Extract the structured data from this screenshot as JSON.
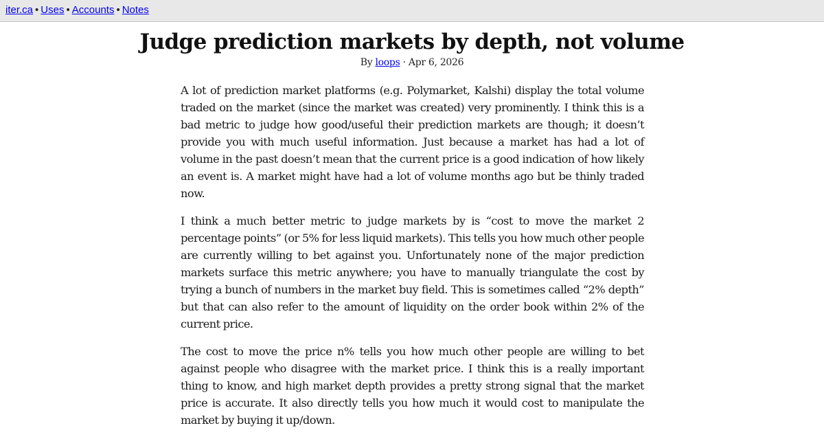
{
  "nav": {
    "links": [
      {
        "label": "iter.ca"
      },
      {
        "label": "Uses"
      },
      {
        "label": "Accounts"
      },
      {
        "label": "Notes"
      }
    ],
    "separator": "•"
  },
  "article": {
    "title": "Judge prediction markets by depth, not volume",
    "byline": {
      "prefix": "By ",
      "author": "loops",
      "date_sep": " · ",
      "date": "Apr 6, 2026"
    },
    "paragraphs": [
      "A lot of prediction market platforms (e.g. Polymarket, Kalshi) display the total volume traded on the market (since the market was created) very prominently. I think this is a bad metric to judge how good/useful their prediction markets are though; it doesn’t provide you with much useful information. Just because a market has had a lot of volume in the past doesn’t mean that the current price is a good indication of how likely an event is. A market might have had a lot of volume months ago but be thinly traded now.",
      "I think a much better metric to judge markets by is “cost to move the market 2 percentage points” (or 5% for less liquid markets). This tells you how much other people are currently willing to bet against you. Unfortunately none of the major prediction markets surface this metric anywhere; you have to manually triangulate the cost by trying a bunch of numbers in the market buy field. This is sometimes called “2% depth” but that can also refer to the amount of liquidity on the order book within 2% of the current price.",
      "The cost to move the price n% tells you how much other people are willing to bet against people who disagree with the market price. I think this is a really important thing to know, and high market depth provides a pretty strong signal that the market price is accurate. It also directly tells you how much it would cost to manipulate the market by buying it up/down."
    ]
  },
  "colors": {
    "link": "#0000ee",
    "nav_bg": "#e8e8e8",
    "text": "#1a1a1a"
  }
}
